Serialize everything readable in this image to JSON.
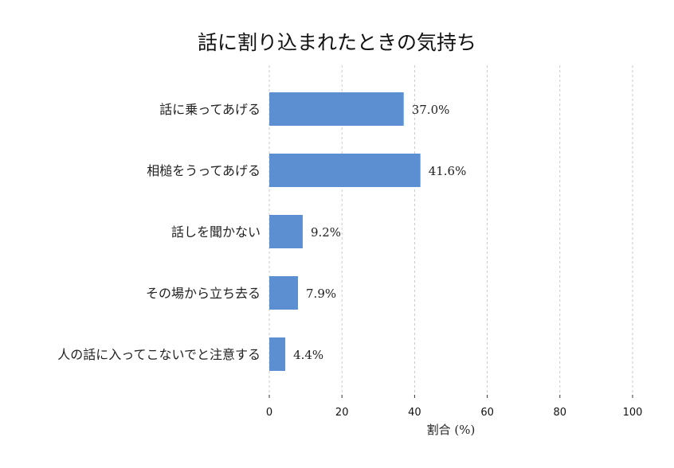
{
  "chart_data": {
    "type": "bar",
    "orientation": "horizontal",
    "title": "話に割り込まれたときの気持ち",
    "xlabel": "割合 (%)",
    "ylabel": "",
    "categories": [
      "話に乗ってあげる",
      "相槌をうってあげる",
      "話しを聞かない",
      "その場から立ち去る",
      "人の話に入ってこないでと注意する"
    ],
    "values": [
      37.0,
      41.6,
      9.2,
      7.9,
      4.4
    ],
    "value_labels": [
      "37.0%",
      "41.6%",
      "9.2%",
      "7.9%",
      "4.4%"
    ],
    "xlim": [
      0,
      100
    ],
    "xticks": [
      0,
      20,
      40,
      60,
      80,
      100
    ],
    "xtick_labels": [
      "0",
      "20",
      "40",
      "60",
      "80",
      "100"
    ],
    "grid": "vertical-dashed",
    "bar_color": "#5b8fd1"
  }
}
